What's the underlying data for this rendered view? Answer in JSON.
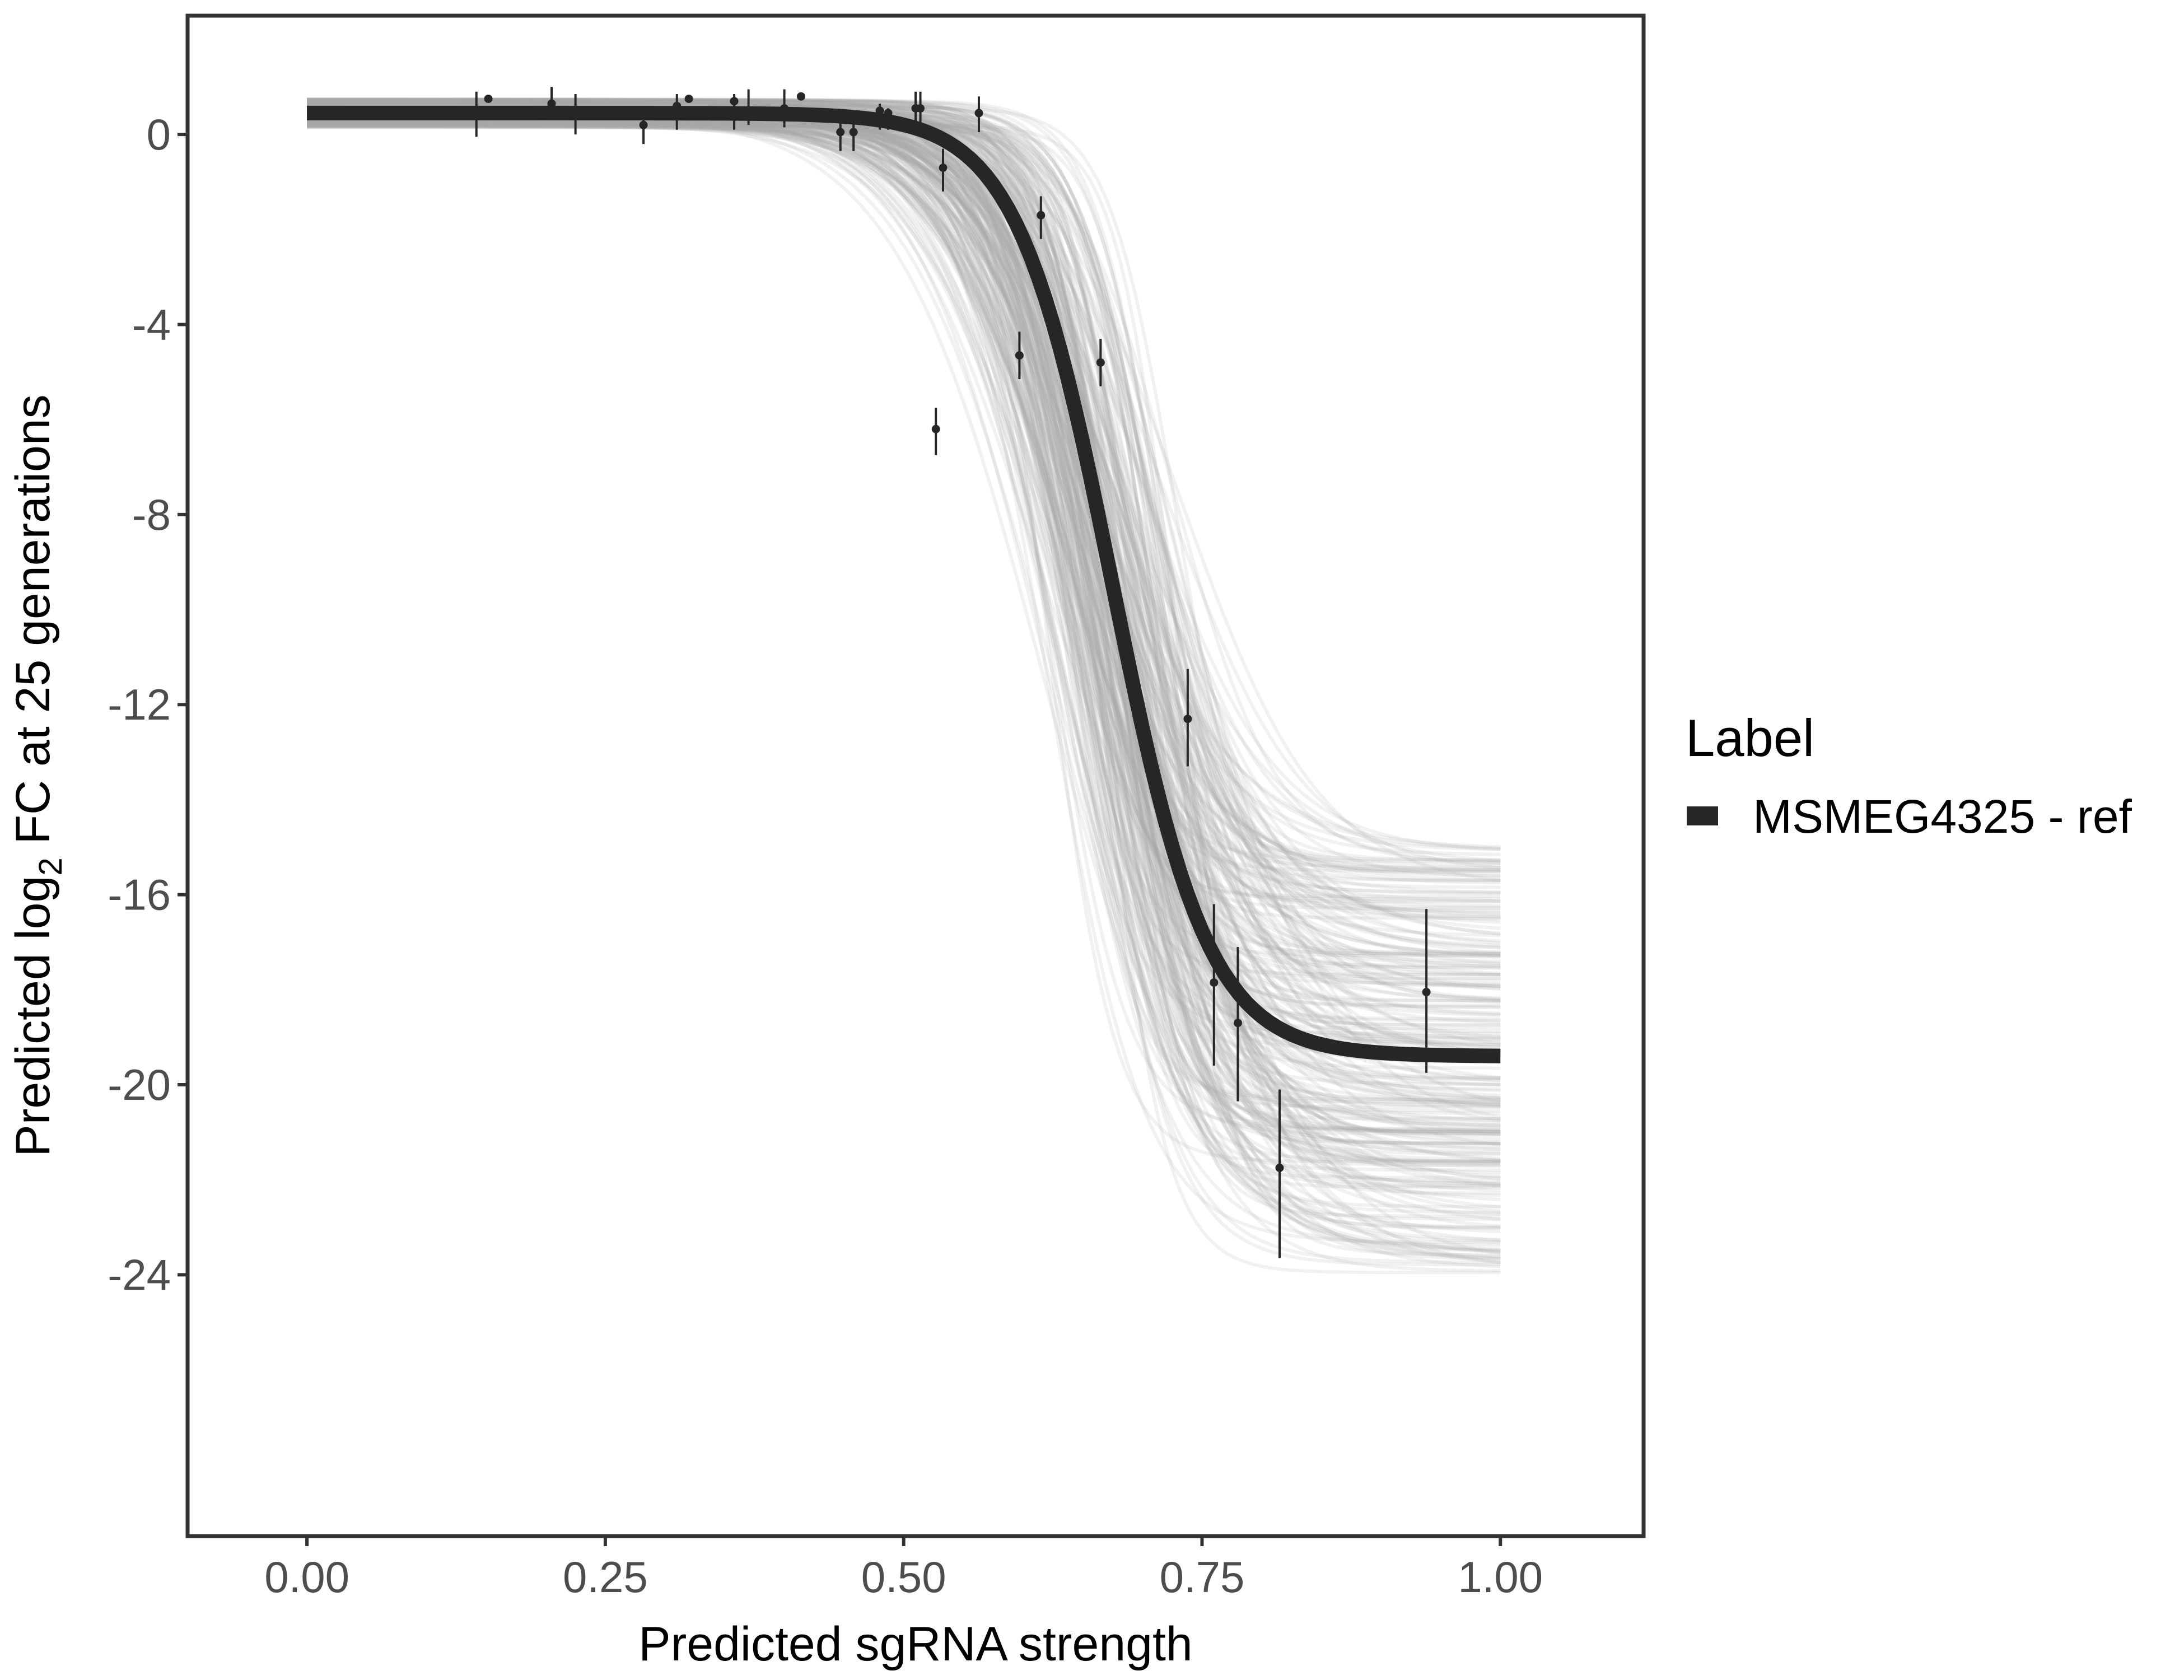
{
  "chart_data": {
    "type": "line",
    "xlabel": "Predicted sgRNA strength",
    "ylabel_prefix": "Predicted  log",
    "ylabel_subscript": "2",
    "ylabel_suffix": " FC at 25 generations",
    "xlim": [
      -0.1,
      1.12
    ],
    "ylim": [
      -29.5,
      2.5
    ],
    "x_ticks": [
      0.0,
      0.25,
      0.5,
      0.75,
      1.0
    ],
    "x_tick_labels": [
      "0.00",
      "0.25",
      "0.50",
      "0.75",
      "1.00"
    ],
    "y_ticks": [
      0,
      -4,
      -8,
      -12,
      -16,
      -20,
      -24
    ],
    "y_tick_labels": [
      "0",
      "-4",
      "-8",
      "-12",
      "-16",
      "-20",
      "-24"
    ],
    "grid": false,
    "legend": {
      "position": "right",
      "title": "Label",
      "entries": [
        {
          "label": "MSMEG4325 - ref",
          "color": "#262626"
        }
      ]
    },
    "colors": {
      "fit": "#262626",
      "posterior_draws": "#a6a6a6",
      "points": "#262626",
      "frame": "#333333"
    },
    "fit_curve": {
      "model": "logistic",
      "top": 0.45,
      "bottom": -19.4,
      "midpoint": 0.675,
      "slope": 0.04,
      "x_range": [
        0.0,
        1.0
      ]
    },
    "posterior_draws": {
      "count": 260,
      "top": [
        0.15,
        0.75
      ],
      "bottom": [
        -24.0,
        -15.0
      ],
      "midpoint": [
        0.6,
        0.74
      ],
      "slope": [
        0.025,
        0.065
      ],
      "x_range": [
        0.0,
        1.0
      ]
    },
    "points": [
      {
        "x": 0.142,
        "y": 0.4,
        "lo": -0.05,
        "hi": 0.9
      },
      {
        "x": 0.152,
        "y": 0.75,
        "lo": 0.75,
        "hi": 0.75
      },
      {
        "x": 0.205,
        "y": 0.65,
        "lo": 0.3,
        "hi": 1.0
      },
      {
        "x": 0.225,
        "y": 0.5,
        "lo": 0.0,
        "hi": 0.85
      },
      {
        "x": 0.282,
        "y": 0.2,
        "lo": -0.2,
        "hi": 0.4
      },
      {
        "x": 0.31,
        "y": 0.6,
        "lo": 0.1,
        "hi": 0.85
      },
      {
        "x": 0.32,
        "y": 0.75,
        "lo": 0.75,
        "hi": 0.75
      },
      {
        "x": 0.358,
        "y": 0.7,
        "lo": 0.1,
        "hi": 0.85
      },
      {
        "x": 0.37,
        "y": 0.5,
        "lo": 0.2,
        "hi": 0.95
      },
      {
        "x": 0.4,
        "y": 0.55,
        "lo": 0.15,
        "hi": 0.95
      },
      {
        "x": 0.414,
        "y": 0.8,
        "lo": 0.8,
        "hi": 0.8
      },
      {
        "x": 0.447,
        "y": 0.05,
        "lo": -0.35,
        "hi": 0.45
      },
      {
        "x": 0.458,
        "y": 0.05,
        "lo": -0.35,
        "hi": 0.35
      },
      {
        "x": 0.48,
        "y": 0.5,
        "lo": 0.1,
        "hi": 0.65
      },
      {
        "x": 0.487,
        "y": 0.45,
        "lo": 0.1,
        "hi": 0.55
      },
      {
        "x": 0.51,
        "y": 0.55,
        "lo": 0.1,
        "hi": 0.9
      },
      {
        "x": 0.514,
        "y": 0.55,
        "lo": 0.15,
        "hi": 0.9
      },
      {
        "x": 0.527,
        "y": -6.2,
        "lo": -6.75,
        "hi": -5.75
      },
      {
        "x": 0.533,
        "y": -0.7,
        "lo": -1.2,
        "hi": -0.3
      },
      {
        "x": 0.563,
        "y": 0.45,
        "lo": 0.05,
        "hi": 0.8
      },
      {
        "x": 0.597,
        "y": -4.65,
        "lo": -5.15,
        "hi": -4.15
      },
      {
        "x": 0.615,
        "y": -1.7,
        "lo": -2.2,
        "hi": -1.3
      },
      {
        "x": 0.665,
        "y": -4.8,
        "lo": -5.3,
        "hi": -4.3
      },
      {
        "x": 0.738,
        "y": -12.3,
        "lo": -13.3,
        "hi": -11.25
      },
      {
        "x": 0.76,
        "y": -17.85,
        "lo": -19.6,
        "hi": -16.2
      },
      {
        "x": 0.78,
        "y": -18.7,
        "lo": -20.35,
        "hi": -17.1
      },
      {
        "x": 0.815,
        "y": -21.75,
        "lo": -23.65,
        "hi": -20.1
      },
      {
        "x": 0.938,
        "y": -18.05,
        "lo": -19.75,
        "hi": -16.3
      }
    ]
  }
}
